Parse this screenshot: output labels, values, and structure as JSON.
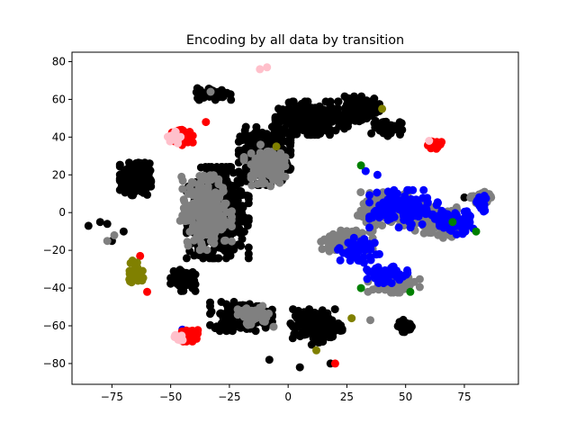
{
  "chart_data": {
    "type": "scatter",
    "title": "Encoding by all data by transition",
    "xlabel": "",
    "ylabel": "",
    "xlim": [
      -92,
      98
    ],
    "ylim": [
      -91,
      85
    ],
    "xticks": [
      -75,
      -50,
      -25,
      0,
      25,
      50,
      75
    ],
    "yticks": [
      -80,
      -60,
      -40,
      -20,
      0,
      20,
      40,
      60,
      80
    ],
    "x_tick_labels": [
      "−75",
      "−50",
      "−25",
      "0",
      "25",
      "50",
      "75"
    ],
    "y_tick_labels": [
      "−80",
      "−60",
      "−40",
      "−20",
      "0",
      "20",
      "40",
      "60",
      "80"
    ],
    "grid": false,
    "legend": "none",
    "series": [
      {
        "color": "#000000",
        "clusters": [
          {
            "center": [
              -30,
              0
            ],
            "spread": [
              12,
              22
            ],
            "count": 700
          },
          {
            "center": [
              -10,
              30
            ],
            "spread": [
              10,
              14
            ],
            "count": 350
          },
          {
            "center": [
              10,
              50
            ],
            "spread": [
              14,
              8
            ],
            "count": 250
          },
          {
            "center": [
              30,
              55
            ],
            "spread": [
              8,
              6
            ],
            "count": 120
          },
          {
            "center": [
              42,
              45
            ],
            "spread": [
              6,
              4
            ],
            "count": 60
          },
          {
            "center": [
              -65,
              18
            ],
            "spread": [
              6,
              8
            ],
            "count": 250
          },
          {
            "center": [
              -32,
              63
            ],
            "spread": [
              7,
              3
            ],
            "count": 70
          },
          {
            "center": [
              -20,
              -55
            ],
            "spread": [
              12,
              7
            ],
            "count": 200
          },
          {
            "center": [
              12,
              -60
            ],
            "spread": [
              10,
              8
            ],
            "count": 150
          },
          {
            "center": [
              -45,
              -35
            ],
            "spread": [
              5,
              6
            ],
            "count": 80
          },
          {
            "center": [
              50,
              -60
            ],
            "spread": [
              3,
              3
            ],
            "count": 30
          }
        ],
        "points": [
          [
            -85,
            -7
          ],
          [
            -80,
            -5
          ],
          [
            -77,
            -6
          ],
          [
            -75,
            -15
          ],
          [
            -70,
            -10
          ],
          [
            -8,
            -78
          ],
          [
            5,
            -82
          ],
          [
            18,
            -80
          ],
          [
            10,
            -70
          ],
          [
            75,
            8
          ]
        ]
      },
      {
        "color": "#808080",
        "clusters": [
          {
            "center": [
              -35,
              0
            ],
            "spread": [
              10,
              18
            ],
            "count": 250
          },
          {
            "center": [
              -10,
              25
            ],
            "spread": [
              8,
              10
            ],
            "count": 120
          },
          {
            "center": [
              45,
              2
            ],
            "spread": [
              14,
              8
            ],
            "count": 220
          },
          {
            "center": [
              65,
              -5
            ],
            "spread": [
              10,
              8
            ],
            "count": 150
          },
          {
            "center": [
              25,
              -15
            ],
            "spread": [
              10,
              5
            ],
            "count": 100
          },
          {
            "center": [
              45,
              -38
            ],
            "spread": [
              10,
              4
            ],
            "count": 90
          },
          {
            "center": [
              82,
              7
            ],
            "spread": [
              4,
              4
            ],
            "count": 40
          },
          {
            "center": [
              -15,
              -55
            ],
            "spread": [
              8,
              5
            ],
            "count": 50
          }
        ],
        "points": [
          [
            -77,
            -15
          ],
          [
            -74,
            -12
          ],
          [
            35,
            -57
          ],
          [
            -33,
            64
          ]
        ]
      },
      {
        "color": "#0000ff",
        "clusters": [
          {
            "center": [
              50,
              2
            ],
            "spread": [
              14,
              9
            ],
            "count": 150
          },
          {
            "center": [
              70,
              -5
            ],
            "spread": [
              8,
              6
            ],
            "count": 70
          },
          {
            "center": [
              30,
              -20
            ],
            "spread": [
              8,
              6
            ],
            "count": 60
          },
          {
            "center": [
              42,
              -33
            ],
            "spread": [
              8,
              4
            ],
            "count": 60
          },
          {
            "center": [
              82,
              5
            ],
            "spread": [
              3,
              4
            ],
            "count": 25
          }
        ],
        "points": [
          [
            33,
            22
          ],
          [
            38,
            20
          ],
          [
            -45,
            -62
          ]
        ]
      },
      {
        "color": "#ff0000",
        "clusters": [
          {
            "center": [
              -45,
              40
            ],
            "spread": [
              4,
              4
            ],
            "count": 70
          },
          {
            "center": [
              -42,
              -65
            ],
            "spread": [
              4,
              3
            ],
            "count": 50
          },
          {
            "center": [
              62,
              36
            ],
            "spread": [
              3,
              2
            ],
            "count": 30
          }
        ],
        "points": [
          [
            -60,
            -42
          ],
          [
            -63,
            -23
          ],
          [
            20,
            -80
          ],
          [
            -35,
            48
          ]
        ]
      },
      {
        "color": "#ffc0cb",
        "clusters": [
          {
            "center": [
              -48,
              40
            ],
            "spread": [
              3,
              3
            ],
            "count": 20
          },
          {
            "center": [
              -47,
              -66
            ],
            "spread": [
              2,
              2
            ],
            "count": 12
          }
        ],
        "points": [
          [
            -12,
            76
          ],
          [
            -9,
            77
          ],
          [
            60,
            38
          ]
        ]
      },
      {
        "color": "#808000",
        "clusters": [
          {
            "center": [
              -65,
              -32
            ],
            "spread": [
              3,
              6
            ],
            "count": 50
          }
        ],
        "points": [
          [
            27,
            -56
          ],
          [
            40,
            55
          ],
          [
            12,
            -73
          ],
          [
            -5,
            35
          ]
        ]
      },
      {
        "color": "#008000",
        "clusters": [],
        "points": [
          [
            31,
            25
          ],
          [
            31,
            -40
          ],
          [
            80,
            -10
          ],
          [
            52,
            -42
          ],
          [
            70,
            -5
          ]
        ]
      }
    ]
  }
}
